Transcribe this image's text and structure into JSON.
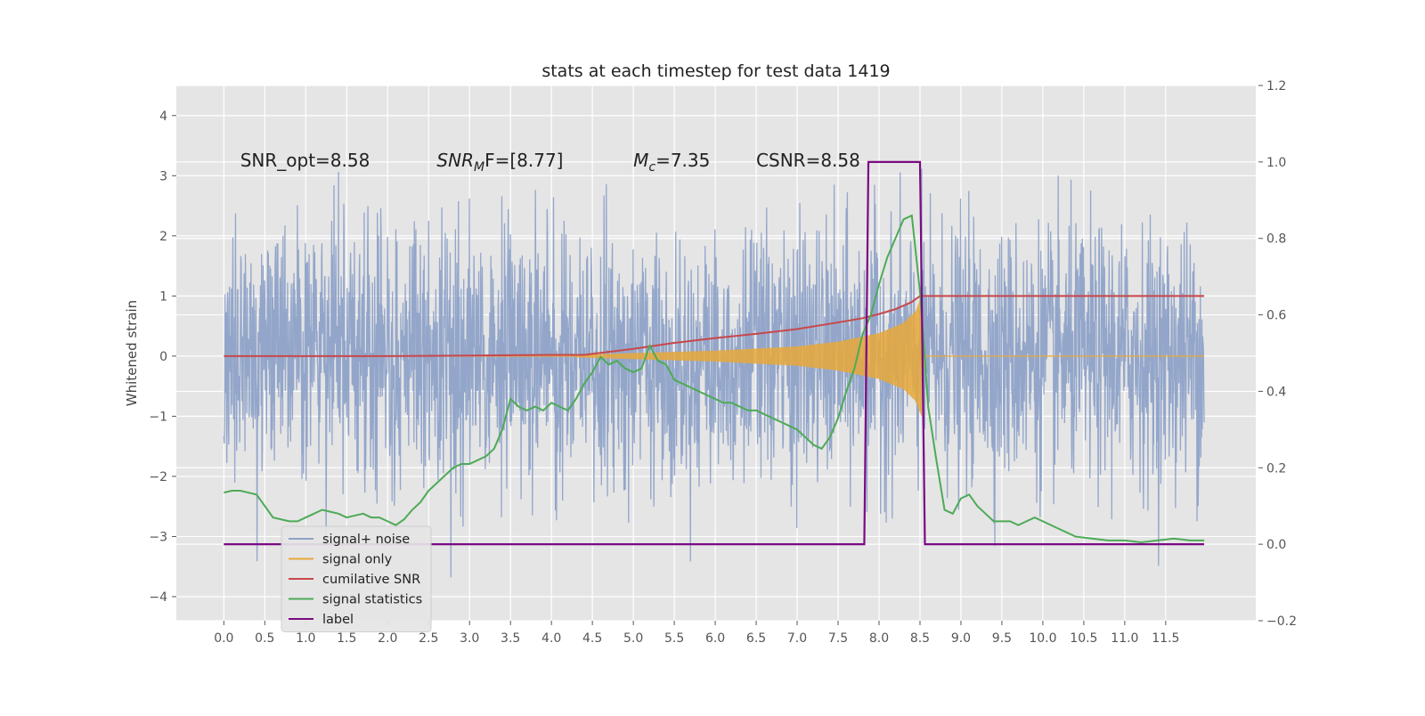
{
  "chart_data": {
    "type": "line",
    "title": "stats at each timestep for test data 1419",
    "xlabel": "",
    "ylabel": "Whitened strain",
    "xlim": [
      -0.58,
      12.6
    ],
    "ylim": [
      -4.4,
      4.5
    ],
    "y2lim": [
      -0.2,
      1.2
    ],
    "x_ticks": [
      "0.0",
      "0.5",
      "1.0",
      "1.5",
      "2.0",
      "2.5",
      "3.0",
      "3.5",
      "4.0",
      "4.5",
      "5.0",
      "5.5",
      "6.0",
      "6.5",
      "7.0",
      "7.5",
      "8.0",
      "8.5",
      "9.0",
      "9.5",
      "10.0",
      "10.5",
      "11.0",
      "11.5"
    ],
    "y_ticks": [
      "−4",
      "−3",
      "−2",
      "−1",
      "0",
      "1",
      "2",
      "3",
      "4"
    ],
    "y2_ticks": [
      "−0.2",
      "0.0",
      "0.2",
      "0.4",
      "0.6",
      "0.8",
      "1.0",
      "1.2"
    ],
    "grid": true,
    "legend_position": "lower-left",
    "colors": {
      "plot_bg": "#e5e5e5",
      "grid": "#ffffff",
      "signal_noise": "#8ea2c8",
      "signal_only": "#e8a83a",
      "cumulative_snr": "#c8474a",
      "signal_statistics": "#4daa57",
      "label": "#7a0a82"
    },
    "annotations": [
      {
        "text": "SNR_opt=8.58",
        "x": 0.2,
        "y": 3.15
      },
      {
        "pre": "SNR",
        "sub": "M",
        "post": "F=[8.77]",
        "x": 2.6,
        "y": 3.15,
        "italic": true
      },
      {
        "pre": "M",
        "sub": "c",
        "post": "=7.35",
        "x": 5.0,
        "y": 3.15,
        "italic": true
      },
      {
        "text": "CSNR=8.58",
        "x": 6.5,
        "y": 3.15
      }
    ],
    "series": [
      {
        "name": "signal+ noise",
        "axis": "left",
        "description": "whitened strain noise, approx N(0,1) from 0.0 to 11.97",
        "x_range": [
          0.0,
          11.97
        ],
        "amplitude": 1.0
      },
      {
        "name": "signal only",
        "axis": "left",
        "description": "chirp envelope growing to merger at 8.5",
        "x": [
          4.3,
          5.0,
          6.0,
          7.0,
          7.5,
          8.0,
          8.3,
          8.45,
          8.52,
          8.55
        ],
        "envelope": [
          0.02,
          0.05,
          0.09,
          0.16,
          0.24,
          0.38,
          0.55,
          0.75,
          1.0,
          0.0
        ]
      },
      {
        "name": "cumilative SNR",
        "axis": "left",
        "x": [
          0.0,
          1.0,
          2.0,
          3.0,
          4.0,
          4.4,
          5.0,
          5.5,
          6.0,
          6.5,
          7.0,
          7.5,
          7.8,
          8.0,
          8.2,
          8.4,
          8.5,
          8.55,
          11.97
        ],
        "values": [
          0.0,
          0.0,
          0.0,
          0.01,
          0.02,
          0.02,
          0.12,
          0.22,
          0.3,
          0.37,
          0.45,
          0.56,
          0.63,
          0.7,
          0.78,
          0.9,
          1.0,
          1.0,
          1.0
        ]
      },
      {
        "name": "signal statistics",
        "axis": "right",
        "x": [
          0.0,
          0.1,
          0.2,
          0.3,
          0.4,
          0.5,
          0.6,
          0.7,
          0.8,
          0.9,
          1.0,
          1.1,
          1.2,
          1.3,
          1.4,
          1.5,
          1.6,
          1.7,
          1.8,
          1.9,
          2.0,
          2.1,
          2.2,
          2.3,
          2.4,
          2.5,
          2.6,
          2.7,
          2.8,
          2.9,
          3.0,
          3.1,
          3.2,
          3.3,
          3.4,
          3.5,
          3.6,
          3.7,
          3.8,
          3.9,
          4.0,
          4.1,
          4.2,
          4.3,
          4.4,
          4.5,
          4.6,
          4.7,
          4.8,
          4.9,
          5.0,
          5.1,
          5.2,
          5.3,
          5.4,
          5.5,
          5.6,
          5.7,
          5.8,
          5.9,
          6.0,
          6.1,
          6.2,
          6.3,
          6.4,
          6.5,
          6.6,
          6.7,
          6.8,
          6.9,
          7.0,
          7.1,
          7.2,
          7.3,
          7.4,
          7.5,
          7.6,
          7.7,
          7.8,
          7.9,
          8.0,
          8.1,
          8.2,
          8.3,
          8.4,
          8.5,
          8.6,
          8.7,
          8.8,
          8.9,
          9.0,
          9.1,
          9.2,
          9.3,
          9.4,
          9.5,
          9.6,
          9.7,
          9.8,
          9.9,
          10.0,
          10.2,
          10.4,
          10.6,
          10.8,
          11.0,
          11.2,
          11.4,
          11.6,
          11.8,
          11.97
        ],
        "values": [
          0.135,
          0.14,
          0.14,
          0.135,
          0.13,
          0.1,
          0.07,
          0.065,
          0.06,
          0.06,
          0.07,
          0.08,
          0.09,
          0.085,
          0.08,
          0.07,
          0.075,
          0.08,
          0.07,
          0.07,
          0.06,
          0.05,
          0.065,
          0.09,
          0.11,
          0.14,
          0.16,
          0.18,
          0.2,
          0.21,
          0.21,
          0.22,
          0.23,
          0.25,
          0.3,
          0.38,
          0.36,
          0.35,
          0.36,
          0.35,
          0.37,
          0.36,
          0.35,
          0.38,
          0.42,
          0.45,
          0.49,
          0.47,
          0.48,
          0.46,
          0.45,
          0.46,
          0.52,
          0.48,
          0.47,
          0.43,
          0.42,
          0.41,
          0.4,
          0.39,
          0.38,
          0.37,
          0.37,
          0.36,
          0.35,
          0.35,
          0.34,
          0.33,
          0.32,
          0.31,
          0.3,
          0.28,
          0.26,
          0.25,
          0.28,
          0.33,
          0.4,
          0.46,
          0.55,
          0.6,
          0.68,
          0.75,
          0.8,
          0.85,
          0.86,
          0.66,
          0.36,
          0.22,
          0.09,
          0.08,
          0.12,
          0.13,
          0.1,
          0.08,
          0.06,
          0.06,
          0.06,
          0.05,
          0.06,
          0.07,
          0.06,
          0.04,
          0.02,
          0.015,
          0.01,
          0.01,
          0.005,
          0.01,
          0.015,
          0.01,
          0.01
        ]
      },
      {
        "name": "label",
        "axis": "right",
        "x": [
          0.0,
          7.82,
          7.87,
          8.5,
          8.56,
          11.97
        ],
        "values": [
          0.0,
          0.0,
          1.0,
          1.0,
          0.0,
          0.0
        ]
      }
    ]
  },
  "legend": {
    "items": [
      {
        "label": "signal+ noise",
        "color_key": "signal_noise"
      },
      {
        "label": "signal only",
        "color_key": "signal_only"
      },
      {
        "label": "cumilative SNR",
        "color_key": "cumulative_snr"
      },
      {
        "label": "signal statistics",
        "color_key": "signal_statistics"
      },
      {
        "label": "label",
        "color_key": "label"
      }
    ]
  }
}
